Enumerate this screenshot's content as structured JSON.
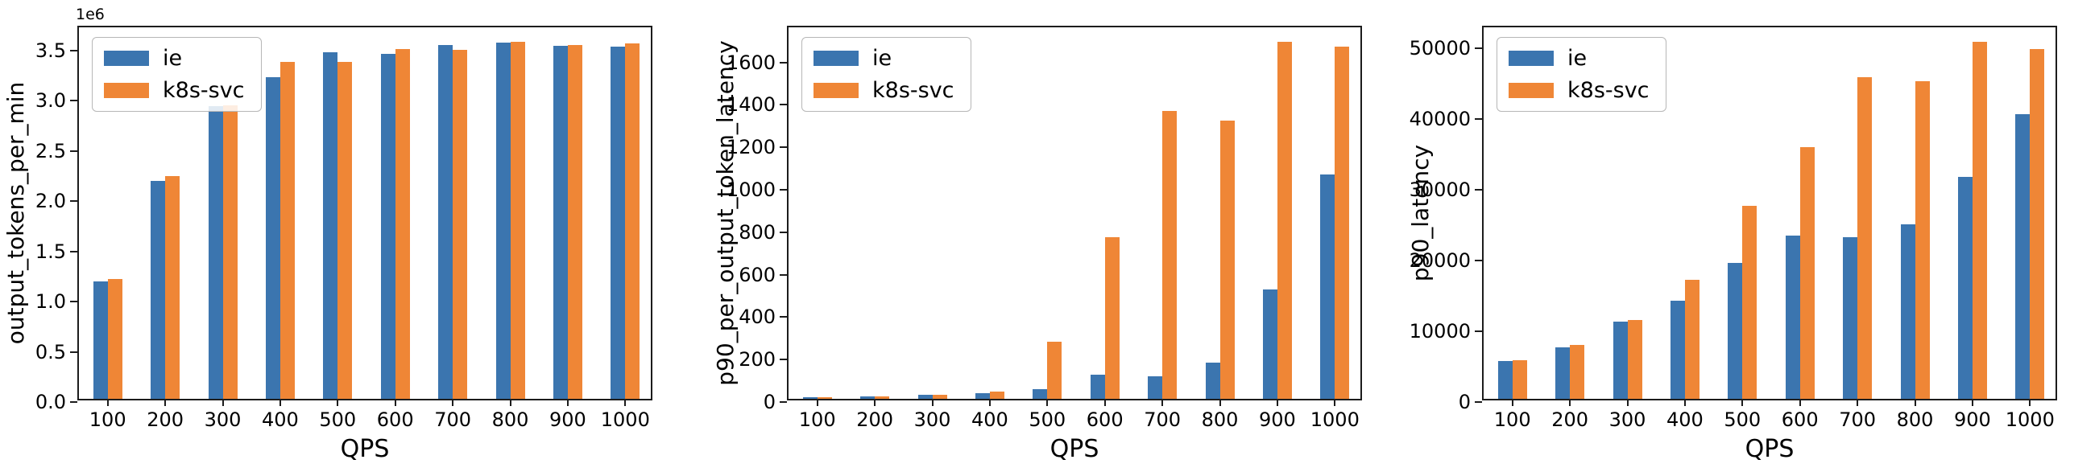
{
  "figure": {
    "background": "#ffffff"
  },
  "colors": {
    "series_ie": "#3b75af",
    "series_k8s_svc": "#ef8636",
    "axis": "#1c1c1c",
    "text": "#000000",
    "legend_border": "#b7b7b7"
  },
  "legend": {
    "position": "upper left",
    "entries": [
      {
        "label": "ie",
        "color": "#3b75af"
      },
      {
        "label": "k8s-svc",
        "color": "#ef8636"
      }
    ]
  },
  "chart_data": [
    {
      "type": "bar",
      "title": "",
      "xlabel": "QPS",
      "ylabel": "output_tokens_per_min",
      "offset_text": "1e6",
      "grid": false,
      "legend_position": "upper left",
      "categories": [
        "100",
        "200",
        "300",
        "400",
        "500",
        "600",
        "700",
        "800",
        "900",
        "1000"
      ],
      "series": [
        {
          "name": "ie",
          "color": "#3b75af",
          "values": [
            1170000,
            2170000,
            2910000,
            3200000,
            3450000,
            3430000,
            3520000,
            3545000,
            3510000,
            3505000
          ]
        },
        {
          "name": "k8s-svc",
          "color": "#ef8636",
          "values": [
            1190000,
            2220000,
            2920000,
            3350000,
            3350000,
            3480000,
            3470000,
            3550000,
            3520000,
            3535000
          ]
        }
      ],
      "ylim": [
        0,
        3730000
      ],
      "ytick_values": [
        0,
        500000,
        1000000,
        1500000,
        2000000,
        2500000,
        3000000,
        3500000
      ],
      "ytick_labels": [
        "0.0",
        "0.5",
        "1.0",
        "1.5",
        "2.0",
        "2.5",
        "3.0",
        "3.5"
      ]
    },
    {
      "type": "bar",
      "title": "",
      "xlabel": "QPS",
      "ylabel": "p90_per_output_token_latency",
      "offset_text": "",
      "grid": false,
      "legend_position": "upper left",
      "categories": [
        "100",
        "200",
        "300",
        "400",
        "500",
        "600",
        "700",
        "800",
        "900",
        "1000"
      ],
      "series": [
        {
          "name": "ie",
          "color": "#3b75af",
          "values": [
            9,
            12,
            18,
            27,
            45,
            115,
            105,
            170,
            515,
            1055
          ]
        },
        {
          "name": "k8s-svc",
          "color": "#ef8636",
          "values": [
            8,
            11,
            18,
            33,
            270,
            760,
            1355,
            1310,
            1680,
            1660
          ]
        }
      ],
      "ylim": [
        0,
        1765
      ],
      "ytick_values": [
        0,
        200,
        400,
        600,
        800,
        1000,
        1200,
        1400,
        1600
      ],
      "ytick_labels": [
        "0",
        "200",
        "400",
        "600",
        "800",
        "1000",
        "1200",
        "1400",
        "1600"
      ]
    },
    {
      "type": "bar",
      "title": "",
      "xlabel": "QPS",
      "ylabel": "p90_latency",
      "offset_text": "",
      "grid": false,
      "legend_position": "upper left",
      "categories": [
        "100",
        "200",
        "300",
        "400",
        "500",
        "600",
        "700",
        "800",
        "900",
        "1000"
      ],
      "series": [
        {
          "name": "ie",
          "color": "#3b75af",
          "values": [
            5300,
            7300,
            10900,
            13900,
            19200,
            23100,
            22800,
            24600,
            31300,
            40200
          ]
        },
        {
          "name": "k8s-svc",
          "color": "#ef8636",
          "values": [
            5400,
            7600,
            11100,
            16800,
            27200,
            35500,
            45400,
            44800,
            50400,
            49400
          ]
        }
      ],
      "ylim": [
        0,
        52900
      ],
      "ytick_values": [
        0,
        10000,
        20000,
        30000,
        40000,
        50000
      ],
      "ytick_labels": [
        "0",
        "10000",
        "20000",
        "30000",
        "40000",
        "50000"
      ]
    }
  ]
}
